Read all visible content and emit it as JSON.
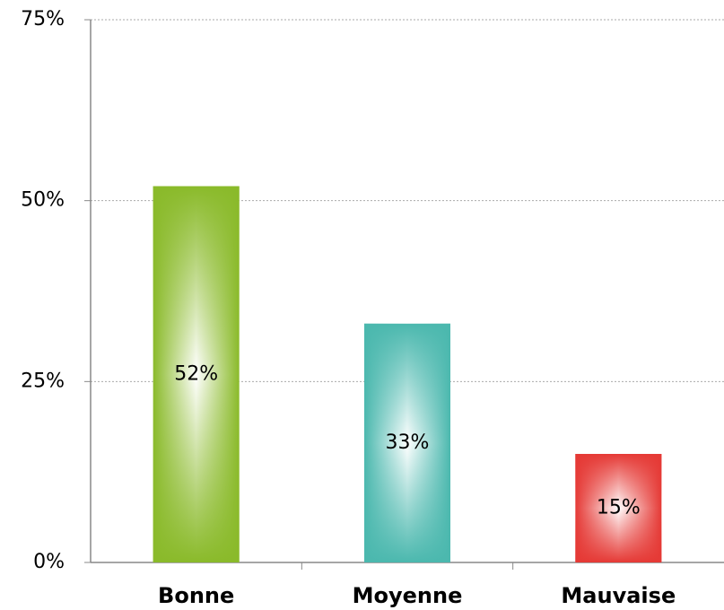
{
  "chart_data": {
    "type": "bar",
    "categories": [
      "Bonne",
      "Moyenne",
      "Mauvaise"
    ],
    "values": [
      52,
      33,
      15
    ],
    "value_labels": [
      "52%",
      "33%",
      "15%"
    ],
    "colors": [
      "#8aba2a",
      "#4bb8ae",
      "#e53935"
    ],
    "ylim": [
      0,
      75
    ],
    "yticks": [
      {
        "value": 0,
        "label": "0%"
      },
      {
        "value": 25,
        "label": "25%"
      },
      {
        "value": 50,
        "label": "50%"
      },
      {
        "value": 75,
        "label": "75%"
      }
    ],
    "grid": true
  }
}
